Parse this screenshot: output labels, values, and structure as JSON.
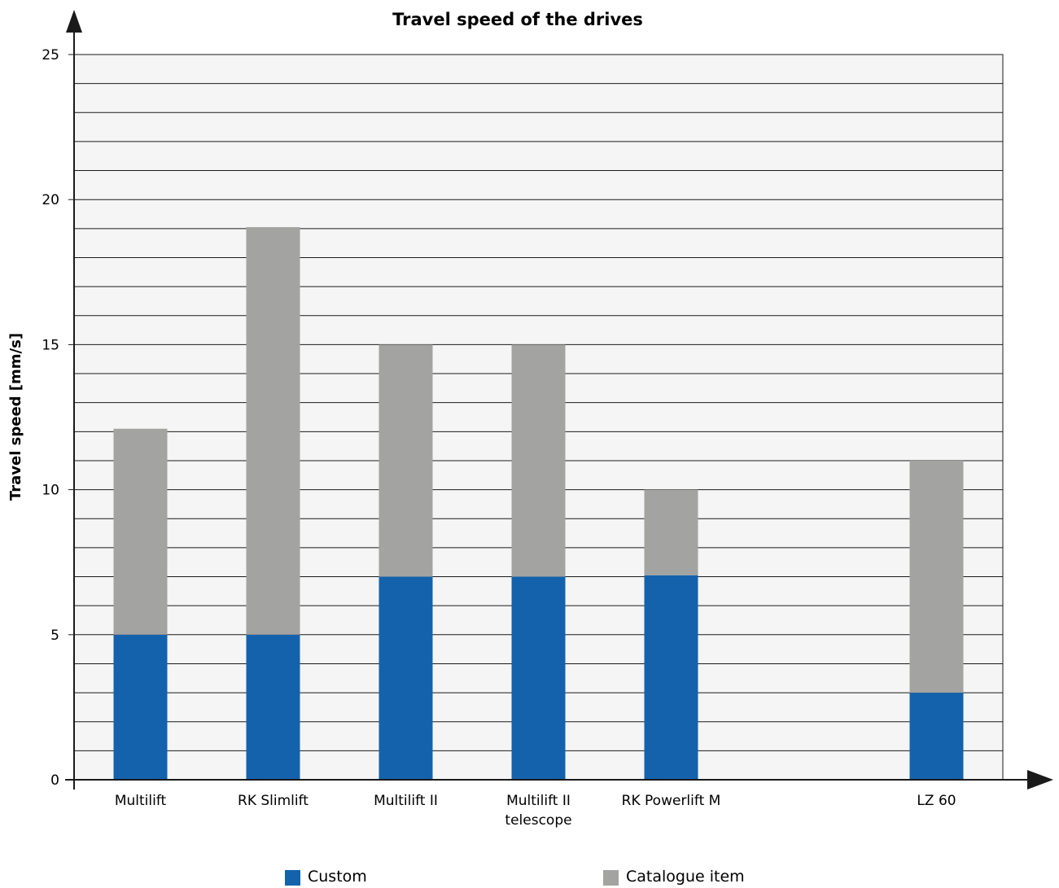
{
  "chart_data": {
    "type": "bar",
    "stacked": true,
    "title": "Travel speed of the drives",
    "xlabel": "",
    "ylabel": "Travel speed [mm/s]",
    "ylim": [
      0,
      25
    ],
    "yticks": [
      "0",
      "5",
      "10",
      "15",
      "20",
      "25"
    ],
    "grid": true,
    "legend_position": "bottom",
    "categories": [
      [
        "Multilift"
      ],
      [
        "RK Slimlift"
      ],
      [
        "Multilift II"
      ],
      [
        "Multilift II",
        "telescope"
      ],
      [
        "RK Powerlift M"
      ],
      [
        ""
      ],
      [
        "LZ 60"
      ]
    ],
    "series": [
      {
        "name": "Custom",
        "color": "#1462ac",
        "values": [
          5,
          5,
          7,
          7,
          7.05,
          0,
          3
        ]
      },
      {
        "name": "Catalogue item",
        "color": "#a3a3a1",
        "values": [
          7.1,
          14.05,
          8,
          8,
          2.95,
          0,
          8
        ]
      }
    ],
    "colors": {
      "plot_background": "#f5f5f5",
      "grid": "#1a1a1a",
      "axis": "#1a1a1a"
    }
  }
}
